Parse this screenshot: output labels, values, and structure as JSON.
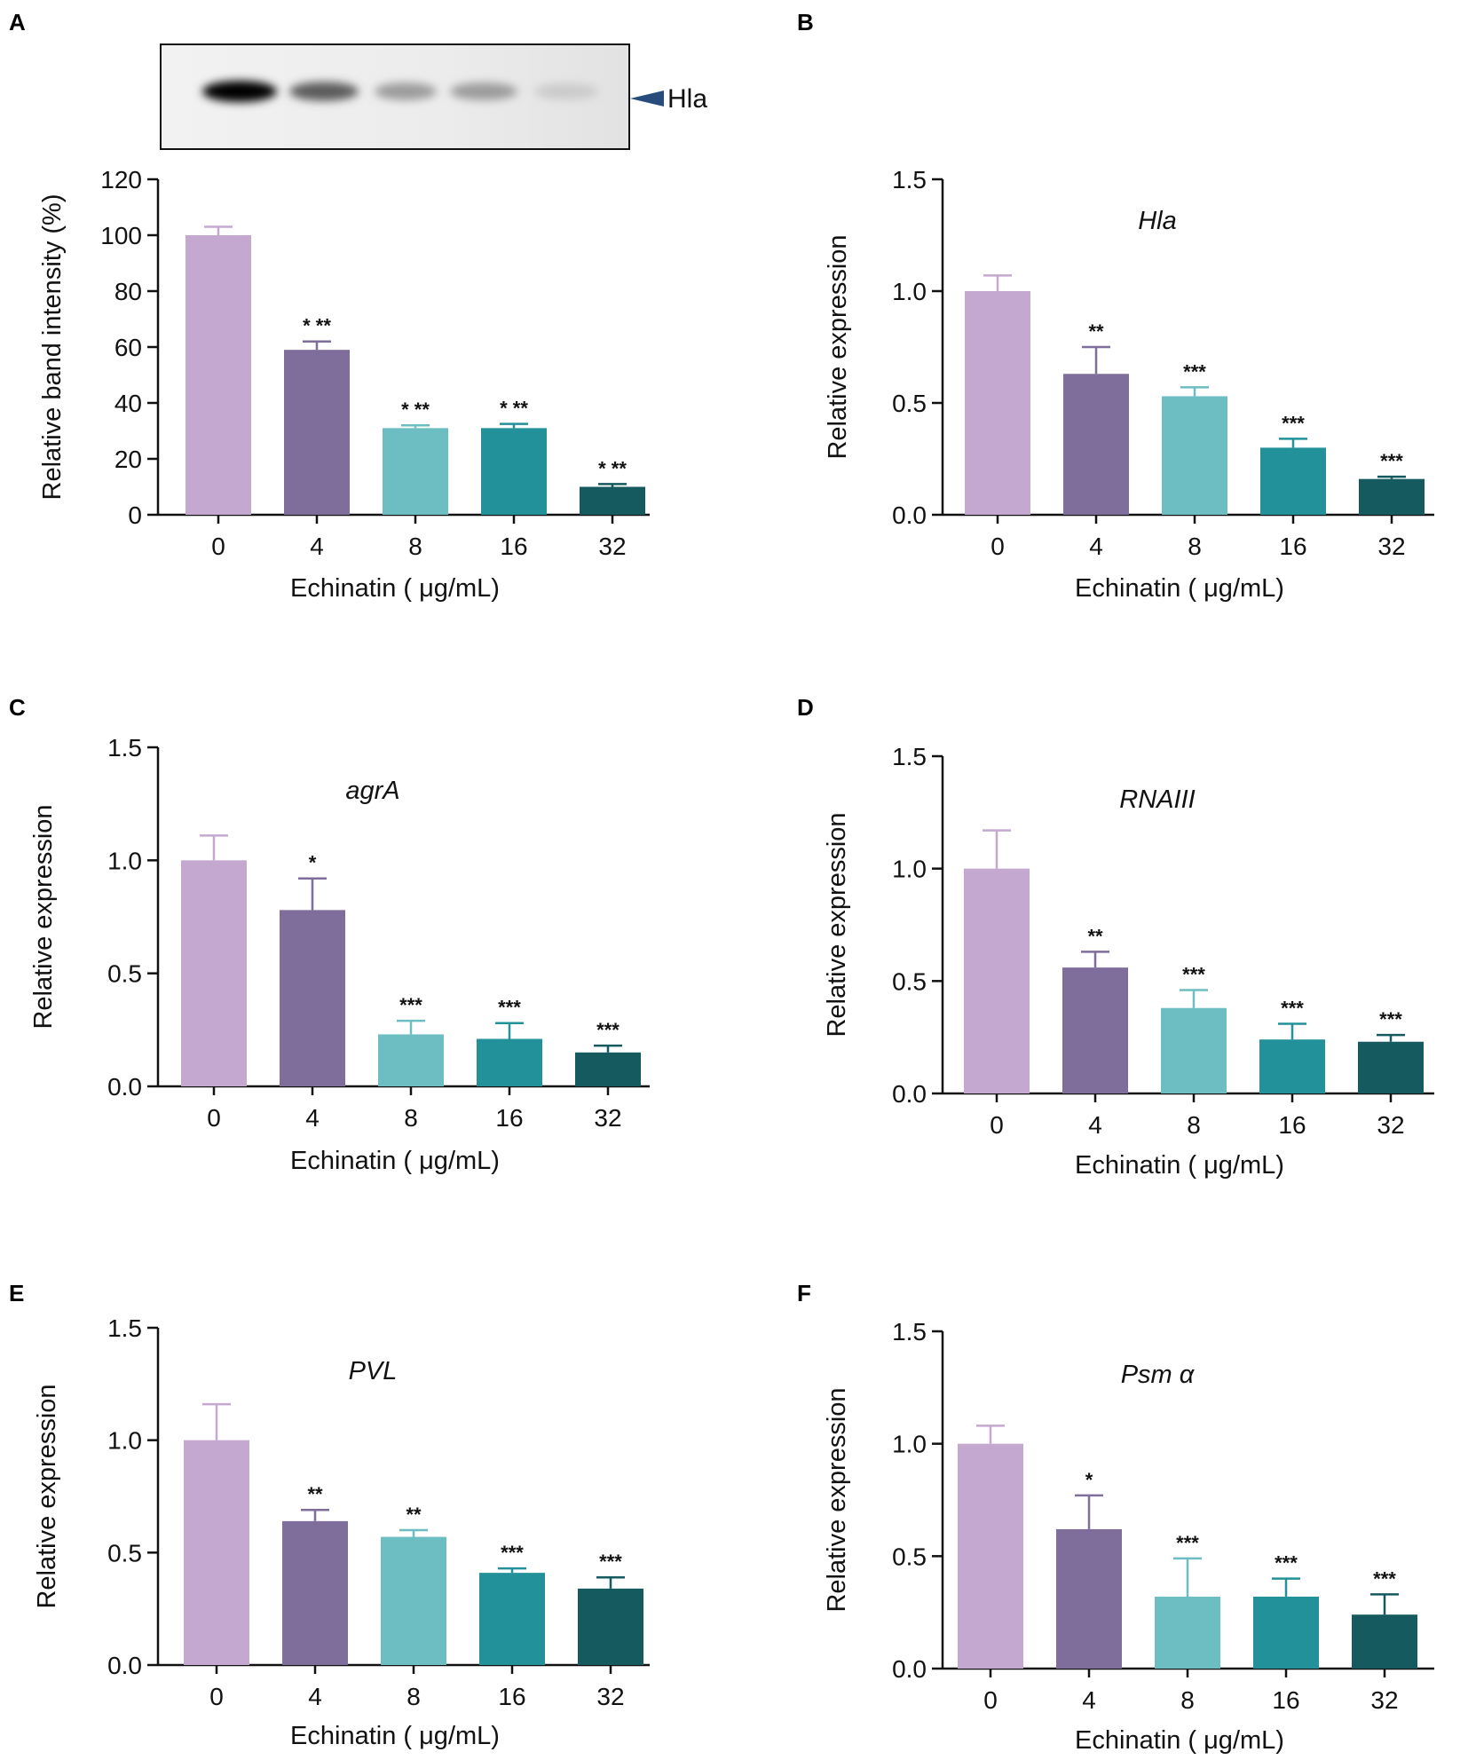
{
  "colors": [
    "#c5a8d0",
    "#7f6e9c",
    "#6dbec3",
    "#23919a",
    "#145a5f"
  ],
  "blot": {
    "label": "Hla",
    "band_intensities": [
      1.0,
      0.59,
      0.31,
      0.31,
      0.1
    ]
  },
  "chart_data": [
    {
      "panel": "A",
      "type": "bar",
      "title": "",
      "categories": [
        "0",
        "4",
        "8",
        "16",
        "32"
      ],
      "values": [
        100,
        59,
        31,
        31,
        10
      ],
      "errors": [
        3,
        3,
        1,
        1.5,
        1
      ],
      "significance": [
        "",
        "* **",
        "* **",
        "* **",
        "* **"
      ],
      "xlabel": "Echinatin ( μg/mL)",
      "ylabel": "Relative band intensity (%)",
      "ylim": [
        0,
        120
      ],
      "yticks": [
        "0",
        "20",
        "40",
        "60",
        "80",
        "100",
        "120"
      ]
    },
    {
      "panel": "B",
      "type": "bar",
      "title": "Hla",
      "categories": [
        "0",
        "4",
        "8",
        "16",
        "32"
      ],
      "values": [
        1.0,
        0.63,
        0.53,
        0.3,
        0.16
      ],
      "errors": [
        0.07,
        0.12,
        0.04,
        0.04,
        0.01
      ],
      "significance": [
        "",
        "**",
        "***",
        "***",
        "***"
      ],
      "xlabel": "Echinatin ( μg/mL)",
      "ylabel": "Relative expression",
      "ylim": [
        0,
        1.5
      ],
      "yticks": [
        "0.0",
        "0.5",
        "1.0",
        "1.5"
      ]
    },
    {
      "panel": "C",
      "type": "bar",
      "title": "agrA",
      "categories": [
        "0",
        "4",
        "8",
        "16",
        "32"
      ],
      "values": [
        1.0,
        0.78,
        0.23,
        0.21,
        0.15
      ],
      "errors": [
        0.11,
        0.14,
        0.06,
        0.07,
        0.03
      ],
      "significance": [
        "",
        "*",
        "***",
        "***",
        "***"
      ],
      "xlabel": "Echinatin ( μg/mL)",
      "ylabel": "Relative expression",
      "ylim": [
        0,
        1.5
      ],
      "yticks": [
        "0.0",
        "0.5",
        "1.0",
        "1.5"
      ]
    },
    {
      "panel": "D",
      "type": "bar",
      "title": "RNAIII",
      "categories": [
        "0",
        "4",
        "8",
        "16",
        "32"
      ],
      "values": [
        1.0,
        0.56,
        0.38,
        0.24,
        0.23
      ],
      "errors": [
        0.17,
        0.07,
        0.08,
        0.07,
        0.03
      ],
      "significance": [
        "",
        "**",
        "***",
        "***",
        "***"
      ],
      "xlabel": "Echinatin ( μg/mL)",
      "ylabel": "Relative expression",
      "ylim": [
        0,
        1.5
      ],
      "yticks": [
        "0.0",
        "0.5",
        "1.0",
        "1.5"
      ]
    },
    {
      "panel": "E",
      "type": "bar",
      "title": "PVL",
      "categories": [
        "0",
        "4",
        "8",
        "16",
        "32"
      ],
      "values": [
        1.0,
        0.64,
        0.57,
        0.41,
        0.34
      ],
      "errors": [
        0.16,
        0.05,
        0.03,
        0.02,
        0.05
      ],
      "significance": [
        "",
        "**",
        "**",
        "***",
        "***"
      ],
      "xlabel": "Echinatin ( μg/mL)",
      "ylabel": "Relative expression",
      "ylim": [
        0,
        1.5
      ],
      "yticks": [
        "0.0",
        "0.5",
        "1.0",
        "1.5"
      ]
    },
    {
      "panel": "F",
      "type": "bar",
      "title": "Psm α",
      "categories": [
        "0",
        "4",
        "8",
        "16",
        "32"
      ],
      "values": [
        1.0,
        0.62,
        0.32,
        0.32,
        0.24
      ],
      "errors": [
        0.08,
        0.15,
        0.17,
        0.08,
        0.09
      ],
      "significance": [
        "",
        "*",
        "***",
        "***",
        "***"
      ],
      "xlabel": "Echinatin ( μg/mL)",
      "ylabel": "Relative expression",
      "ylim": [
        0,
        1.5
      ],
      "yticks": [
        "0.0",
        "0.5",
        "1.0",
        "1.5"
      ]
    }
  ]
}
